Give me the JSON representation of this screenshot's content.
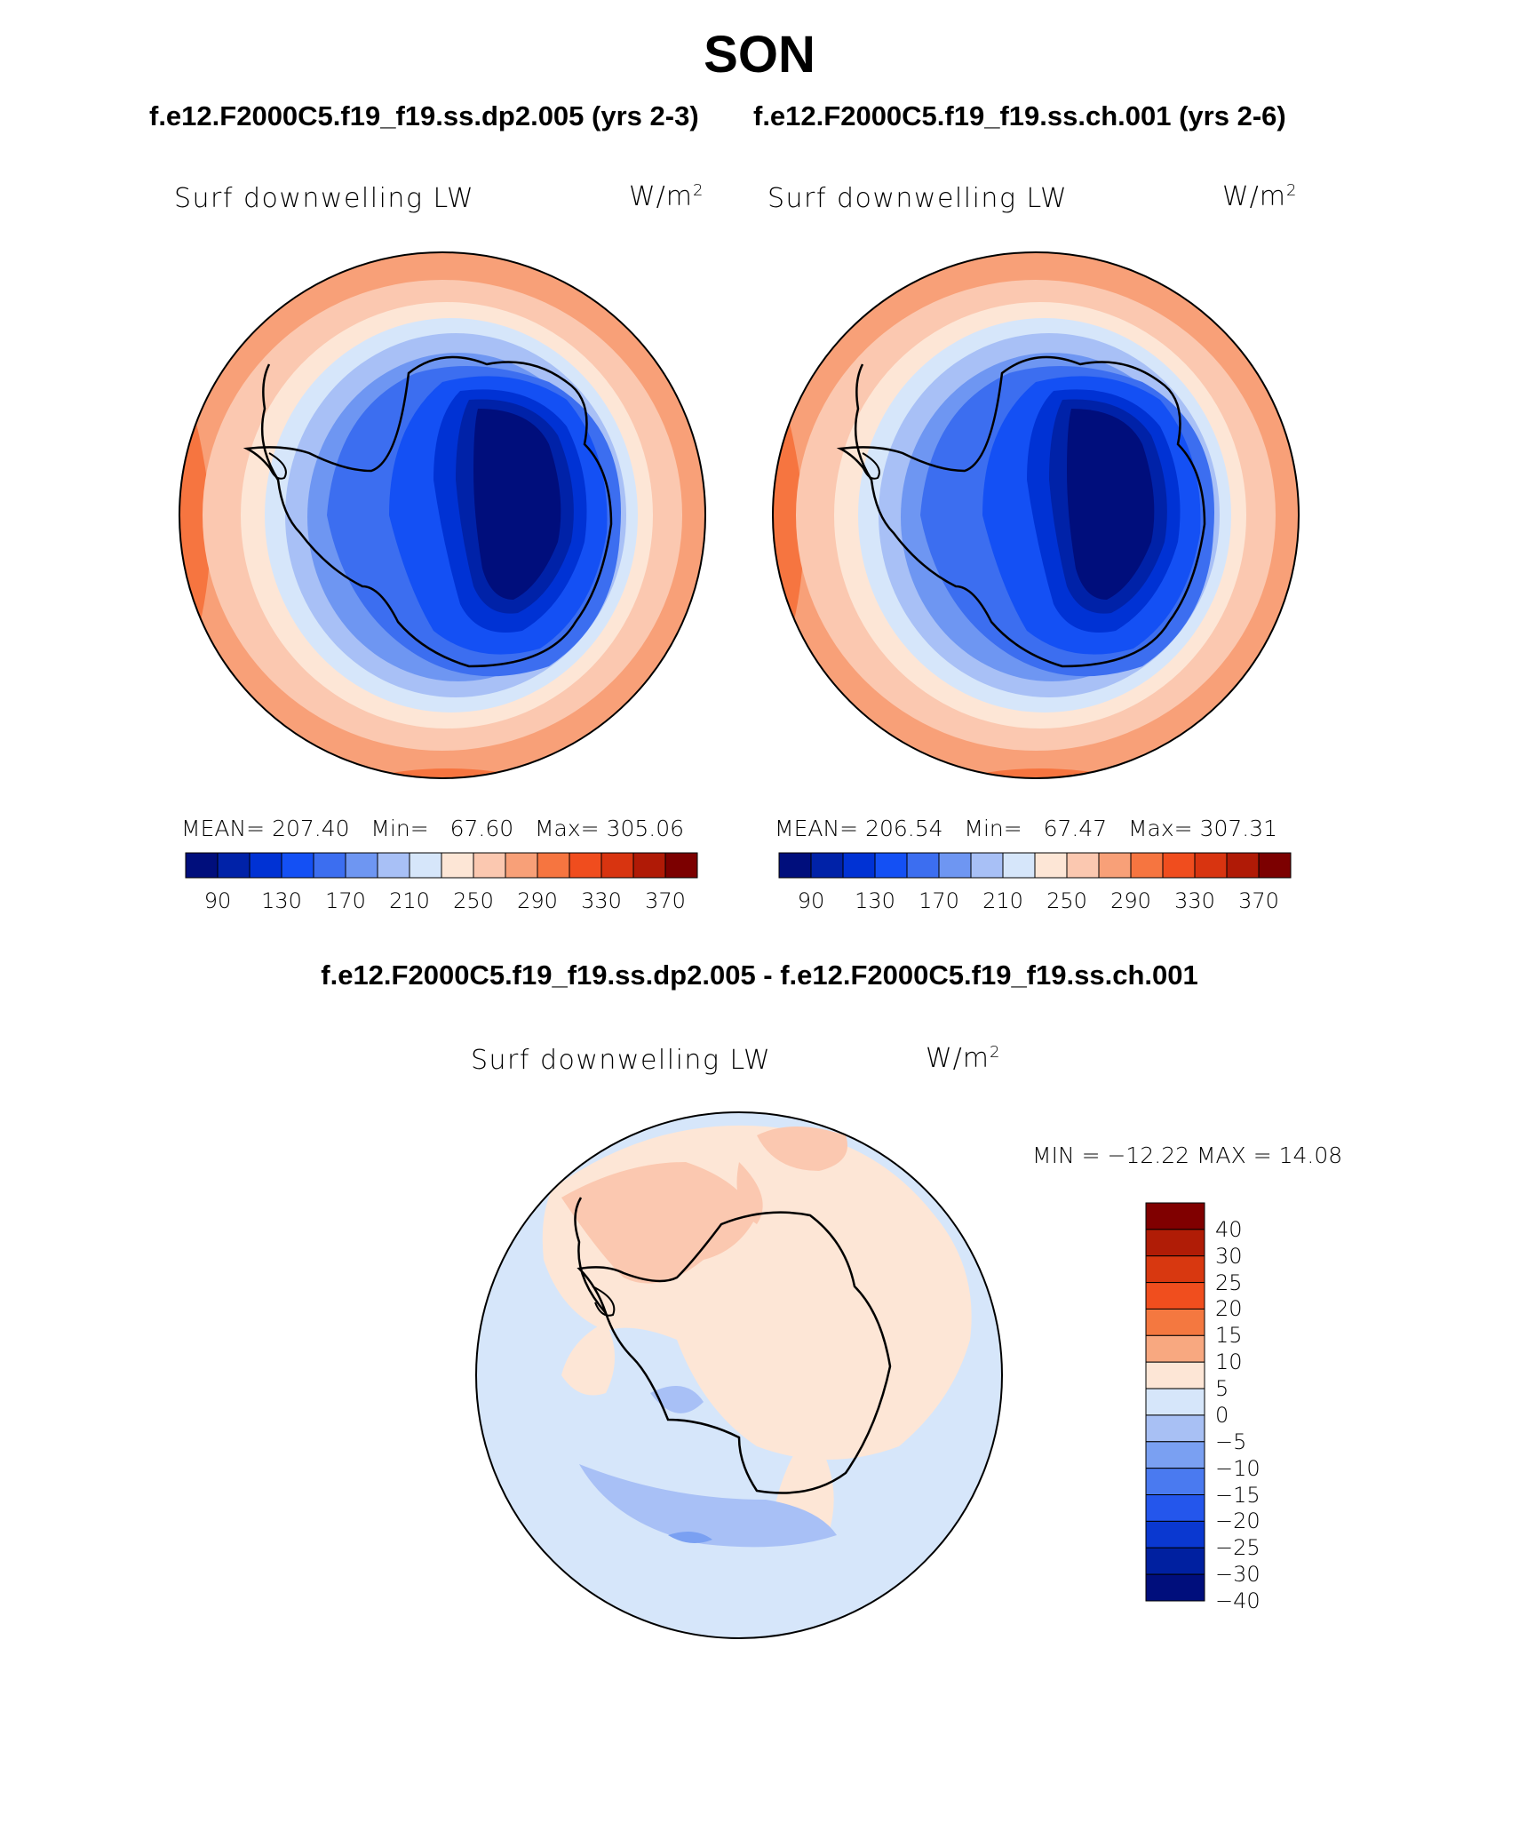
{
  "page": {
    "title": "SON",
    "subtitle_left": "f.e12.F2000C5.f19_f19.ss.dp2.005 (yrs 2-3)",
    "subtitle_right": "f.e12.F2000C5.f19_f19.ss.ch.001 (yrs 2-6)",
    "diff_title": "f.e12.F2000C5.f19_f19.ss.dp2.005 - f.e12.F2000C5.f19_f19.ss.ch.001"
  },
  "panels": [
    {
      "field": "Surf downwelling LW",
      "units": "W/m",
      "units_exp": "2",
      "mean_label": "MEAN=",
      "mean": "207.40",
      "min_label": "Min=",
      "min": "67.60",
      "max_label": "Max=",
      "max": "305.06"
    },
    {
      "field": "Surf downwelling LW",
      "units": "W/m",
      "units_exp": "2",
      "mean_label": "MEAN=",
      "mean": "206.54",
      "min_label": "Min=",
      "min": "67.47",
      "max_label": "Max=",
      "max": "307.31"
    }
  ],
  "colorbar": {
    "colors": [
      "#000e7c",
      "#0022a8",
      "#0032d4",
      "#1450f4",
      "#3c6ef0",
      "#6e96f2",
      "#a8c0f6",
      "#d6e6fa",
      "#fde6d6",
      "#fbc8b0",
      "#f8a078",
      "#f67540",
      "#f04d1e",
      "#d83410",
      "#b01a06",
      "#7c0000"
    ],
    "ticks": [
      "90",
      "130",
      "170",
      "210",
      "250",
      "290",
      "330",
      "370"
    ]
  },
  "diff_panel": {
    "field": "Surf downwelling LW",
    "units": "W/m",
    "units_exp": "2",
    "minmax": "MIN = −12.22 MAX =  14.08",
    "colors": [
      "#800000",
      "#b01c06",
      "#d83810",
      "#f04e1e",
      "#f47840",
      "#f8a880",
      "#fde6d6",
      "#d6e6fa",
      "#a8c0f4",
      "#7aa0f2",
      "#4a7af0",
      "#2456ec",
      "#0a38d0",
      "#0020a0",
      "#000e7c"
    ],
    "labels": [
      "40",
      "30",
      "25",
      "20",
      "15",
      "10",
      "5",
      "0",
      "−5",
      "−10",
      "−15",
      "−20",
      "−25",
      "−30",
      "−40"
    ]
  }
}
